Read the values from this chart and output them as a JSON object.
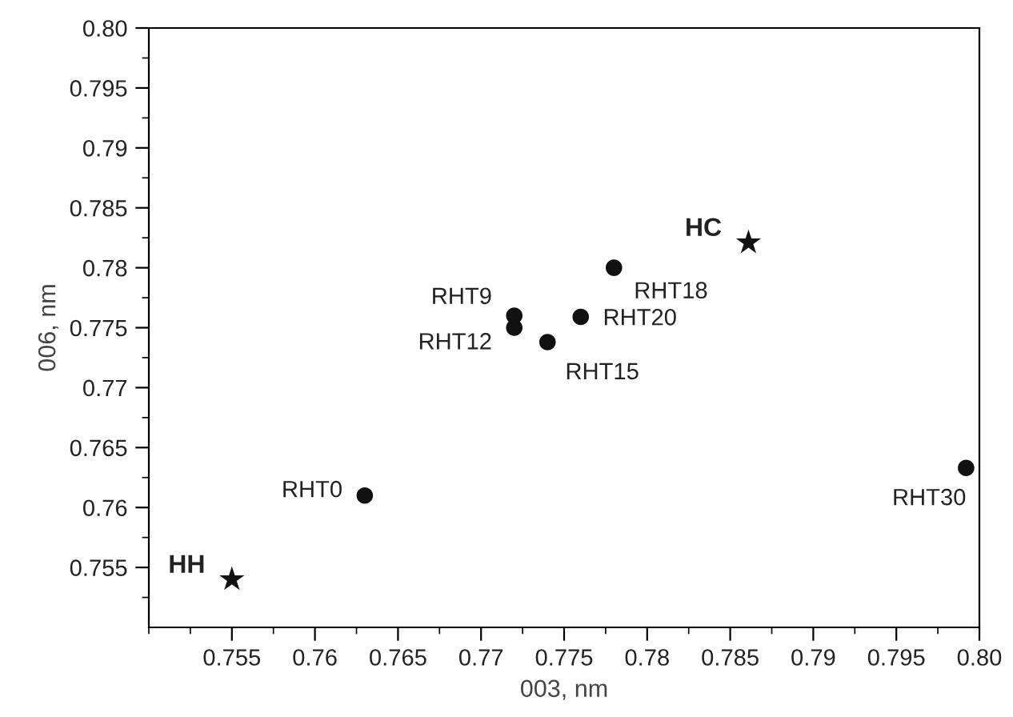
{
  "chart_data": {
    "type": "scatter",
    "xlabel": "003, nm",
    "ylabel": "006, nm",
    "xlim": [
      0.75,
      0.8
    ],
    "ylim": [
      0.75,
      0.8
    ],
    "xticks": [
      0.755,
      0.76,
      0.765,
      0.77,
      0.775,
      0.78,
      0.785,
      0.79,
      0.795,
      {
        "value": 0.8,
        "label": "0.80"
      }
    ],
    "yticks": [
      0.755,
      0.76,
      0.765,
      0.77,
      0.775,
      0.78,
      0.785,
      0.79,
      0.795,
      {
        "value": 0.8,
        "label": "0.80"
      }
    ],
    "grid": false,
    "legend": false,
    "series": [
      {
        "color": "#111111",
        "marker": "circle",
        "x": [
          0.763,
          0.772,
          0.772,
          0.774,
          0.776,
          0.778,
          0.7992
        ],
        "values": [
          0.761,
          0.776,
          0.775,
          0.7738,
          0.7759,
          0.78,
          0.7633
        ]
      },
      {
        "color": "#111111",
        "marker": "star",
        "x": [
          0.755,
          0.7861
        ],
        "values": [
          0.754,
          0.7821
        ]
      }
    ],
    "annotations": [
      {
        "text": "RHT0",
        "x": 0.763,
        "y": 0.761
      },
      {
        "text": "RHT9",
        "x": 0.772,
        "y": 0.776
      },
      {
        "text": "RHT12",
        "x": 0.772,
        "y": 0.775
      },
      {
        "text": "RHT15",
        "x": 0.774,
        "y": 0.7738
      },
      {
        "text": "RHT20",
        "x": 0.776,
        "y": 0.7759
      },
      {
        "text": "RHT18",
        "x": 0.778,
        "y": 0.78
      },
      {
        "text": "RHT30",
        "x": 0.7992,
        "y": 0.7633
      },
      {
        "text": "HH",
        "x": 0.755,
        "y": 0.754
      },
      {
        "text": "HC",
        "x": 0.7861,
        "y": 0.7821
      }
    ]
  }
}
